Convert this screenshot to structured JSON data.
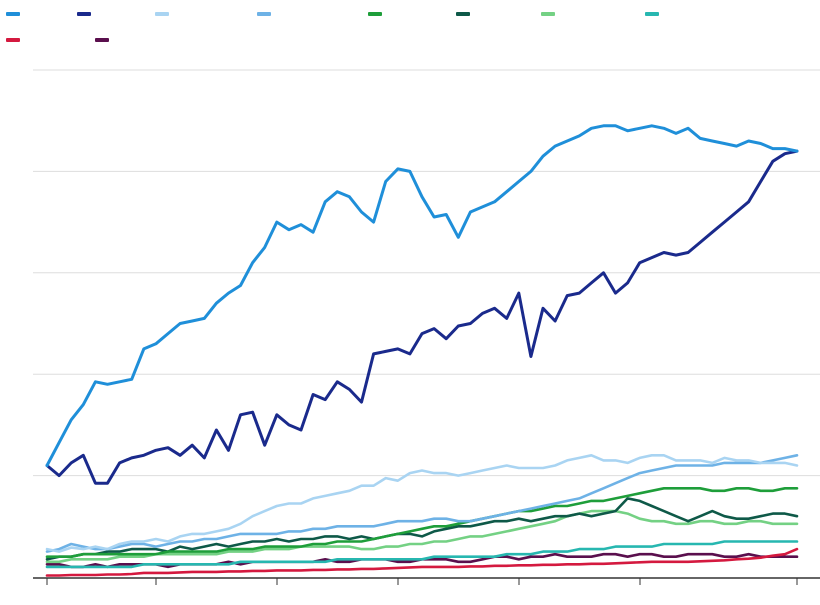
{
  "chart_data": {
    "type": "line",
    "title": "",
    "xlabel": "",
    "ylabel": "",
    "x_start": 0,
    "x_end": 62,
    "ylim": [
      0,
      100
    ],
    "y_gridlines": [
      0,
      20,
      40,
      60,
      80,
      100
    ],
    "x_tick_count": 7,
    "grid": true,
    "legend_position": "top-left",
    "series": [
      {
        "name": "",
        "color": "#1f8fd9",
        "values": [
          22.0,
          26.5,
          31.0,
          34.0,
          38.5,
          38.0,
          38.5,
          39.0,
          45.0,
          46.0,
          48.0,
          50.0,
          50.5,
          51.0,
          54.0,
          56.0,
          57.5,
          62.0,
          65.0,
          70.0,
          68.5,
          69.5,
          68.0,
          74.0,
          76.0,
          75.0,
          72.0,
          70.0,
          78.0,
          80.5,
          80.0,
          75.0,
          71.0,
          71.5,
          67.0,
          72.0,
          73.0,
          74.0,
          76.0,
          78.0,
          80.0,
          83.0,
          85.0,
          86.0,
          87.0,
          88.5,
          89.0,
          89.0,
          88.0,
          88.5,
          89.0,
          88.5,
          87.5,
          88.5,
          86.5,
          86.0,
          85.5,
          85.0,
          86.0,
          85.5,
          84.5,
          84.5,
          84.0
        ]
      },
      {
        "name": "",
        "color": "#1a2a8c",
        "values": [
          22.0,
          20.0,
          22.5,
          24.0,
          18.5,
          18.5,
          22.5,
          23.5,
          24.0,
          25.0,
          25.5,
          24.0,
          26.0,
          23.5,
          29.0,
          25.0,
          32.0,
          32.5,
          26.0,
          32.0,
          30.0,
          29.0,
          36.0,
          35.0,
          38.5,
          37.0,
          34.5,
          44.0,
          44.5,
          45.0,
          44.0,
          48.0,
          49.0,
          47.0,
          49.5,
          50.0,
          52.0,
          53.0,
          51.0,
          56.0,
          43.5,
          53.0,
          50.5,
          55.5,
          56.0,
          58.0,
          60.0,
          56.0,
          58.0,
          62.0,
          63.0,
          64.0,
          63.5,
          64.0,
          66.0,
          68.0,
          70.0,
          72.0,
          74.0,
          78.0,
          82.0,
          83.5,
          84.0
        ]
      },
      {
        "name": "",
        "color": "#a9d4f2",
        "values": [
          5.5,
          5.0,
          5.8,
          5.5,
          6.0,
          5.5,
          6.5,
          7.0,
          7.0,
          7.5,
          7.0,
          8.0,
          8.5,
          8.5,
          9.0,
          9.5,
          10.5,
          12.0,
          13.0,
          14.0,
          14.5,
          14.5,
          15.5,
          16.0,
          16.5,
          17.0,
          18.0,
          18.0,
          19.5,
          19.0,
          20.5,
          21.0,
          20.5,
          20.5,
          20.0,
          20.5,
          21.0,
          21.5,
          22.0,
          21.5,
          21.5,
          21.5,
          22.0,
          23.0,
          23.5,
          24.0,
          23.0,
          23.0,
          22.5,
          23.5,
          24.0,
          24.0,
          23.0,
          23.0,
          23.0,
          22.5,
          23.5,
          23.0,
          23.0,
          22.5,
          22.5,
          22.5,
          22.0
        ]
      },
      {
        "name": "",
        "color": "#6eb2e6",
        "values": [
          5.0,
          5.5,
          6.5,
          6.0,
          5.5,
          5.5,
          6.0,
          6.5,
          6.5,
          6.0,
          6.5,
          7.0,
          7.0,
          7.5,
          7.5,
          8.0,
          8.5,
          8.5,
          8.5,
          8.5,
          9.0,
          9.0,
          9.5,
          9.5,
          10.0,
          10.0,
          10.0,
          10.0,
          10.5,
          11.0,
          11.0,
          11.0,
          11.5,
          11.5,
          11.0,
          11.0,
          11.5,
          12.0,
          12.5,
          13.0,
          13.5,
          14.0,
          14.5,
          15.0,
          15.5,
          16.5,
          17.5,
          18.5,
          19.5,
          20.5,
          21.0,
          21.5,
          22.0,
          22.0,
          22.0,
          22.0,
          22.5,
          22.5,
          22.5,
          22.5,
          23.0,
          23.5,
          24.0
        ]
      },
      {
        "name": "",
        "color": "#1e9e3a",
        "values": [
          4.0,
          4.0,
          4.0,
          4.5,
          4.5,
          4.5,
          4.5,
          4.5,
          4.5,
          4.5,
          5.0,
          5.0,
          5.0,
          5.0,
          5.0,
          5.5,
          5.5,
          5.5,
          6.0,
          6.0,
          6.0,
          6.0,
          6.5,
          6.5,
          7.0,
          7.0,
          7.0,
          7.5,
          8.0,
          8.5,
          9.0,
          9.5,
          10.0,
          10.0,
          10.5,
          11.0,
          11.5,
          12.0,
          12.5,
          13.0,
          13.0,
          13.5,
          14.0,
          14.0,
          14.5,
          15.0,
          15.0,
          15.5,
          16.0,
          16.5,
          17.0,
          17.5,
          17.5,
          17.5,
          17.5,
          17.0,
          17.0,
          17.5,
          17.5,
          17.0,
          17.0,
          17.5,
          17.5
        ]
      },
      {
        "name": "",
        "color": "#0e5948",
        "values": [
          3.5,
          4.0,
          4.0,
          4.5,
          4.5,
          5.0,
          5.0,
          5.5,
          5.5,
          5.5,
          5.0,
          6.0,
          5.5,
          6.0,
          6.5,
          6.0,
          6.5,
          7.0,
          7.0,
          7.5,
          7.0,
          7.5,
          7.5,
          8.0,
          8.0,
          7.5,
          8.0,
          7.5,
          8.0,
          8.5,
          8.5,
          8.0,
          9.0,
          9.5,
          10.0,
          10.0,
          10.5,
          11.0,
          11.0,
          11.5,
          11.0,
          11.5,
          12.0,
          12.0,
          12.5,
          12.0,
          12.5,
          13.0,
          15.5,
          15.0,
          14.0,
          13.0,
          12.0,
          11.0,
          12.0,
          13.0,
          12.0,
          11.5,
          11.5,
          12.0,
          12.5,
          12.5,
          12.0
        ]
      },
      {
        "name": "",
        "color": "#74d184",
        "values": [
          3.0,
          3.0,
          3.5,
          3.5,
          3.5,
          3.5,
          4.0,
          4.0,
          4.0,
          4.5,
          4.5,
          4.5,
          4.5,
          4.5,
          4.5,
          5.0,
          5.0,
          5.0,
          5.5,
          5.5,
          5.5,
          6.0,
          6.0,
          6.0,
          6.0,
          6.0,
          5.5,
          5.5,
          6.0,
          6.0,
          6.5,
          6.5,
          7.0,
          7.0,
          7.5,
          8.0,
          8.0,
          8.5,
          9.0,
          9.5,
          10.0,
          10.5,
          11.0,
          12.0,
          12.5,
          13.0,
          13.0,
          13.0,
          12.5,
          11.5,
          11.0,
          11.0,
          10.5,
          10.5,
          11.0,
          11.0,
          10.5,
          10.5,
          11.0,
          11.0,
          10.5,
          10.5,
          10.5
        ]
      },
      {
        "name": "",
        "color": "#27b7b0",
        "values": [
          2.0,
          2.0,
          2.0,
          2.0,
          2.0,
          2.0,
          2.0,
          2.0,
          2.5,
          2.5,
          2.5,
          2.5,
          2.5,
          2.5,
          2.5,
          2.5,
          3.0,
          3.0,
          3.0,
          3.0,
          3.0,
          3.0,
          3.0,
          3.0,
          3.5,
          3.5,
          3.5,
          3.5,
          3.5,
          3.5,
          3.5,
          3.5,
          4.0,
          4.0,
          4.0,
          4.0,
          4.0,
          4.0,
          4.5,
          4.5,
          4.5,
          5.0,
          5.0,
          5.0,
          5.5,
          5.5,
          5.5,
          6.0,
          6.0,
          6.0,
          6.0,
          6.5,
          6.5,
          6.5,
          6.5,
          6.5,
          7.0,
          7.0,
          7.0,
          7.0,
          7.0,
          7.0,
          7.0
        ]
      },
      {
        "name": "",
        "color": "#d4193f",
        "values": [
          0.3,
          0.3,
          0.4,
          0.4,
          0.4,
          0.5,
          0.5,
          0.6,
          0.8,
          0.8,
          0.8,
          0.9,
          1.0,
          1.0,
          1.0,
          1.1,
          1.1,
          1.2,
          1.2,
          1.3,
          1.3,
          1.3,
          1.4,
          1.4,
          1.5,
          1.5,
          1.6,
          1.6,
          1.7,
          1.8,
          1.9,
          2.0,
          2.0,
          2.0,
          2.0,
          2.1,
          2.1,
          2.2,
          2.2,
          2.3,
          2.3,
          2.4,
          2.4,
          2.5,
          2.5,
          2.6,
          2.6,
          2.7,
          2.8,
          2.9,
          3.0,
          3.0,
          3.0,
          3.0,
          3.1,
          3.2,
          3.3,
          3.5,
          3.6,
          3.8,
          4.2,
          4.5,
          5.5
        ]
      },
      {
        "name": "",
        "color": "#5a0f4d",
        "values": [
          2.5,
          2.5,
          2.0,
          2.0,
          2.5,
          2.0,
          2.5,
          2.5,
          2.5,
          2.5,
          2.0,
          2.5,
          2.5,
          2.5,
          2.5,
          3.0,
          2.5,
          3.0,
          3.0,
          3.0,
          3.0,
          3.0,
          3.0,
          3.5,
          3.0,
          3.0,
          3.5,
          3.5,
          3.5,
          3.0,
          3.0,
          3.5,
          3.5,
          3.5,
          3.0,
          3.0,
          3.5,
          4.0,
          4.0,
          3.5,
          4.0,
          4.0,
          4.5,
          4.0,
          4.0,
          4.0,
          4.5,
          4.5,
          4.0,
          4.5,
          4.5,
          4.0,
          4.0,
          4.5,
          4.5,
          4.5,
          4.0,
          4.0,
          4.5,
          4.0,
          4.0,
          4.0,
          4.0
        ]
      }
    ]
  }
}
